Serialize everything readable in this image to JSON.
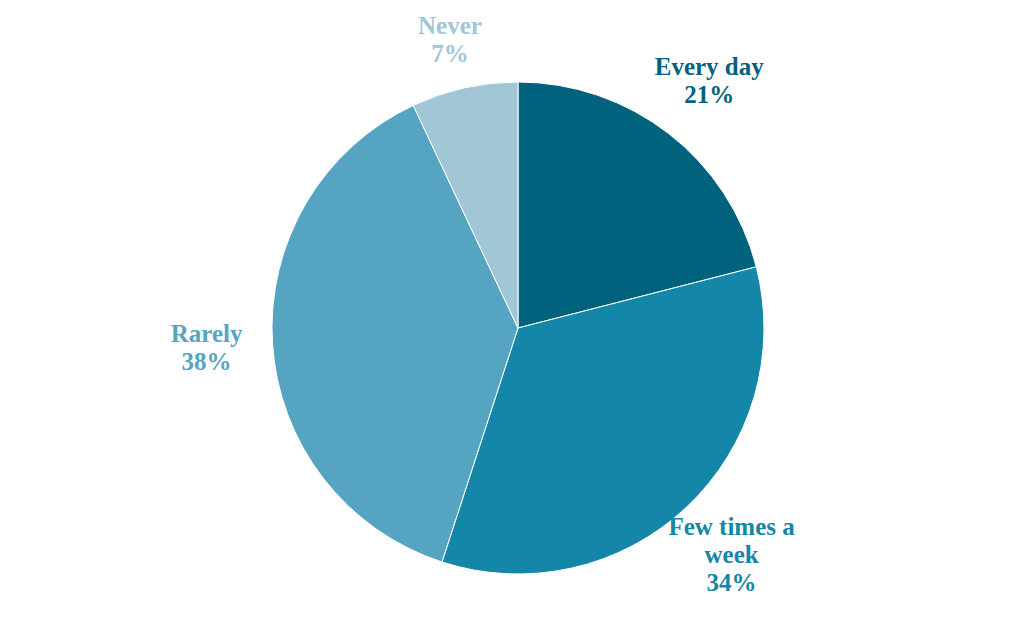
{
  "chart_data": {
    "type": "pie",
    "categories": [
      "Every day",
      "Few times a week",
      "Rarely",
      "Never"
    ],
    "values": [
      21,
      34,
      38,
      7
    ],
    "value_labels": [
      "21%",
      "34%",
      "38%",
      "7%"
    ],
    "colors": [
      "#00627c",
      "#1487a8",
      "#55a5c2",
      "#a1c6d6"
    ],
    "data_labels": true
  }
}
